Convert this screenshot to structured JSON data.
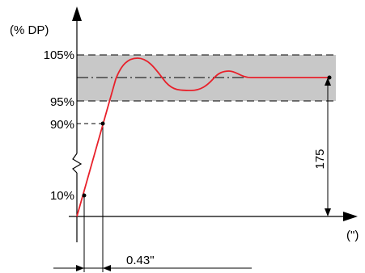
{
  "labels": {
    "y_axis_unit": "(% DP)",
    "x_axis_unit": "(\")",
    "pct_105": "105%",
    "pct_95": "95%",
    "pct_90": "90%",
    "pct_10": "10%",
    "dim_time": "0.43\"",
    "dim_height": "175"
  },
  "colors": {
    "response_curve": "#e8202a",
    "tolerance_band": "#c8c8c8",
    "line": "#000000"
  }
}
